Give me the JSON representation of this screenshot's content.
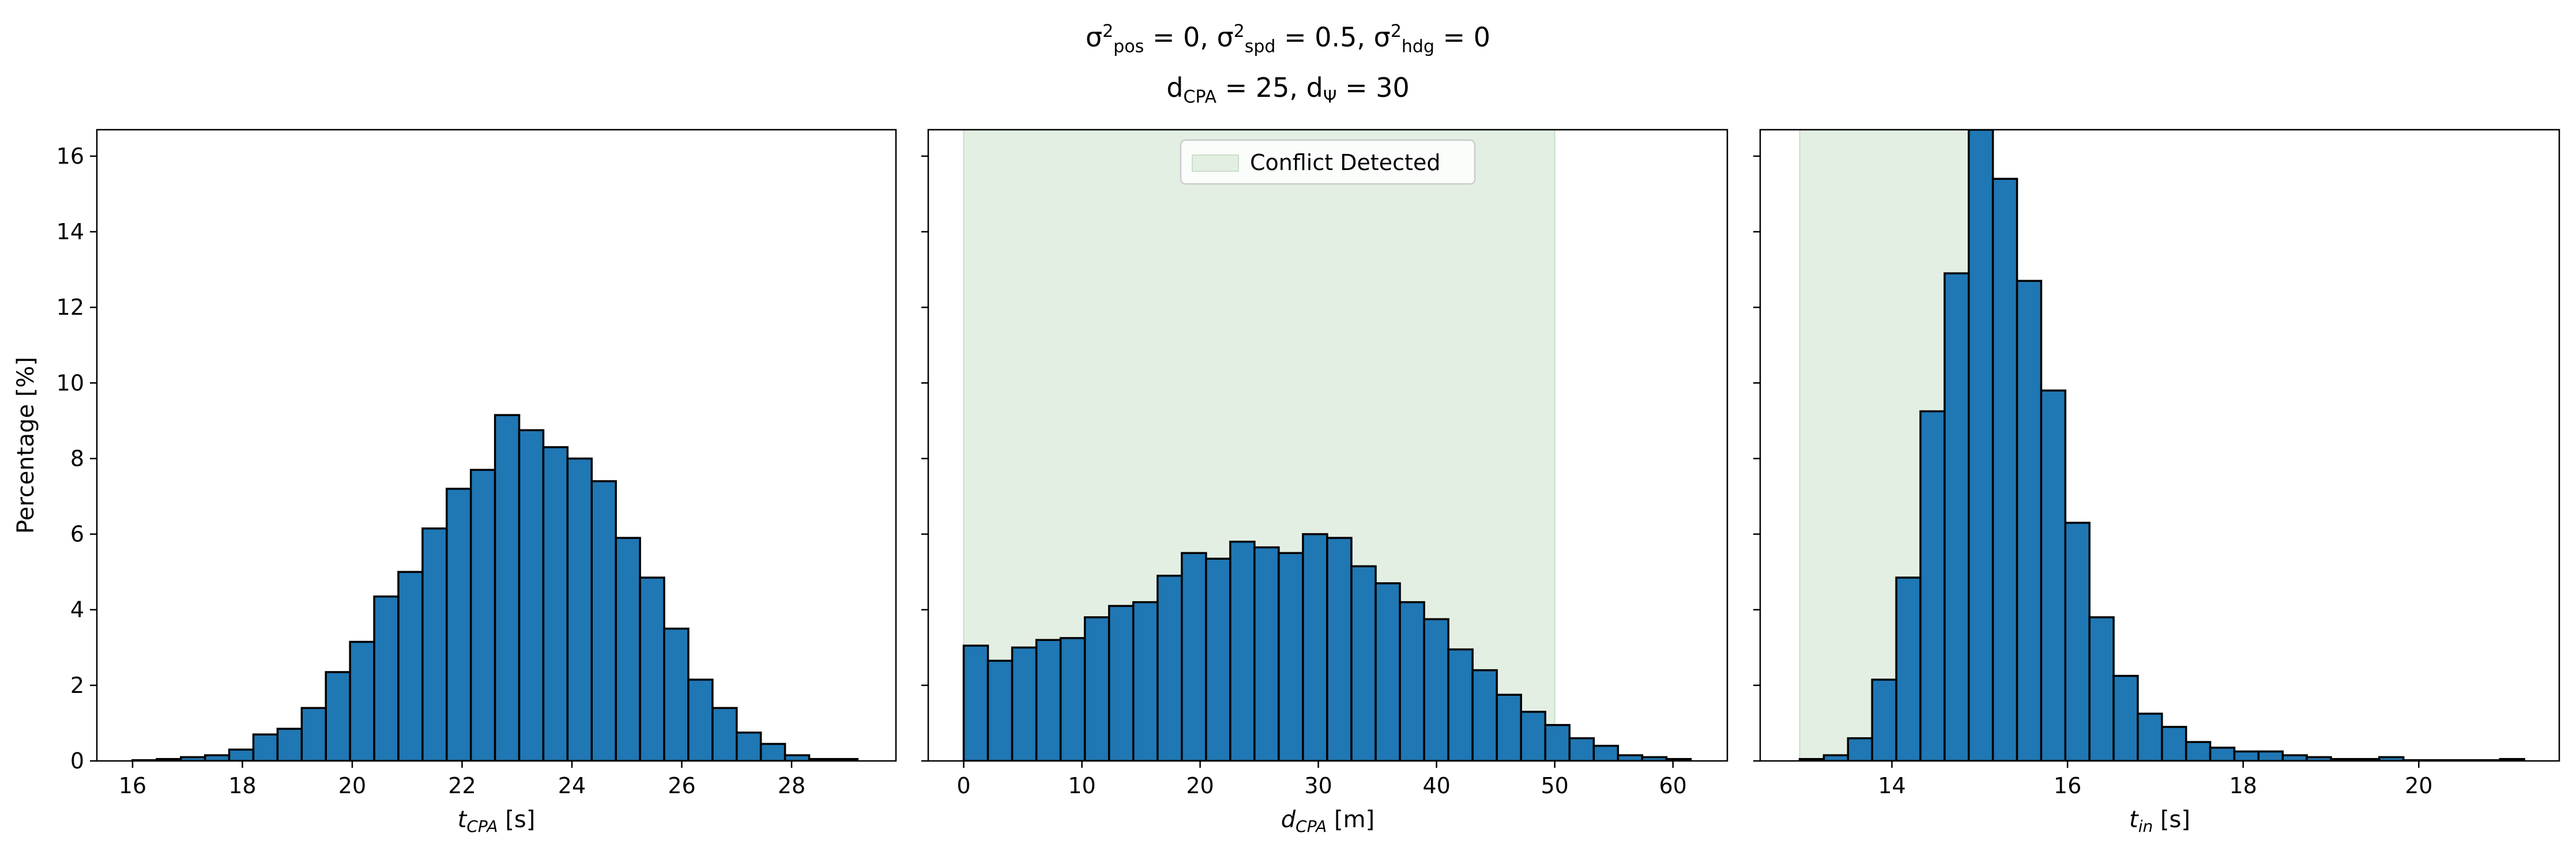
{
  "title": {
    "line1": [
      {
        "t": "σ"
      },
      {
        "sup": "2"
      },
      {
        "sub": "pos"
      },
      {
        "t": " = 0, σ"
      },
      {
        "sup": "2"
      },
      {
        "sub": "spd"
      },
      {
        "t": " = 0.5, σ"
      },
      {
        "sup": "2"
      },
      {
        "sub": "hdg"
      },
      {
        "t": " = 0"
      }
    ],
    "line2": [
      {
        "t": "d"
      },
      {
        "sub": "CPA"
      },
      {
        "t": " = 25, d"
      },
      {
        "sub": "Ψ"
      },
      {
        "t": " = 30"
      }
    ]
  },
  "shared_ylabel": "Percentage [%]",
  "colors": {
    "bar": "#1f77b4",
    "edge": "#000000",
    "shade": "#e4efe4",
    "shade_edge": "#c8dfc8"
  },
  "chart_data": [
    {
      "type": "bar",
      "xlabel": {
        "main": "t",
        "sub": "CPA",
        "unit": " [s]"
      },
      "ylabel": "Percentage [%]",
      "xlim": [
        15.35,
        29.9
      ],
      "ylim": [
        0,
        16.7
      ],
      "xticks": [
        16,
        18,
        20,
        22,
        24,
        26,
        28
      ],
      "yticks": [
        0,
        2,
        4,
        6,
        8,
        10,
        12,
        14,
        16
      ],
      "bin_start": 16.0,
      "bin_width": 0.44,
      "values": [
        0.02,
        0.05,
        0.1,
        0.15,
        0.3,
        0.7,
        0.85,
        1.4,
        2.35,
        3.15,
        4.35,
        5.0,
        6.15,
        7.2,
        7.7,
        9.15,
        8.75,
        8.3,
        8.0,
        7.4,
        5.9,
        4.85,
        3.5,
        2.15,
        1.4,
        0.75,
        0.45,
        0.15,
        0.05,
        0.05
      ]
    },
    {
      "type": "bar",
      "xlabel": {
        "main": "d",
        "sub": "CPA",
        "unit": " [m]"
      },
      "xlim": [
        -3.0,
        64.6
      ],
      "ylim": [
        0,
        16.7
      ],
      "xticks": [
        0,
        10,
        20,
        30,
        40,
        50,
        60
      ],
      "yticks": [
        0,
        2,
        4,
        6,
        8,
        10,
        12,
        14,
        16
      ],
      "bin_start": 0.0,
      "bin_width": 2.05,
      "values": [
        3.05,
        2.65,
        3.0,
        3.2,
        3.25,
        3.8,
        4.1,
        4.2,
        4.9,
        5.5,
        5.35,
        5.8,
        5.65,
        5.5,
        6.0,
        5.9,
        5.15,
        4.7,
        4.2,
        3.75,
        2.95,
        2.4,
        1.75,
        1.3,
        0.95,
        0.6,
        0.4,
        0.15,
        0.1,
        0.05
      ],
      "shade": {
        "x0": 0,
        "x1": 50
      },
      "legend": {
        "label": "Conflict Detected",
        "loc": "upper center"
      }
    },
    {
      "type": "bar",
      "xlabel": {
        "main": "t",
        "sub": "in",
        "unit": " [s]"
      },
      "xlim": [
        12.5,
        21.6
      ],
      "ylim": [
        0,
        16.7
      ],
      "xticks": [
        14,
        16,
        18,
        20
      ],
      "yticks": [
        0,
        2,
        4,
        6,
        8,
        10,
        12,
        14,
        16
      ],
      "bin_start": 12.95,
      "bin_width": 0.275,
      "values": [
        0.05,
        0.15,
        0.6,
        2.15,
        4.85,
        9.25,
        12.9,
        16.7,
        15.4,
        12.7,
        9.8,
        6.3,
        3.8,
        2.25,
        1.25,
        0.9,
        0.5,
        0.35,
        0.25,
        0.25,
        0.15,
        0.1,
        0.05,
        0.05,
        0.1,
        0.02,
        0.02,
        0.02,
        0.02,
        0.05
      ],
      "shade": {
        "x0": 12.95,
        "x1": 15.0
      }
    }
  ]
}
